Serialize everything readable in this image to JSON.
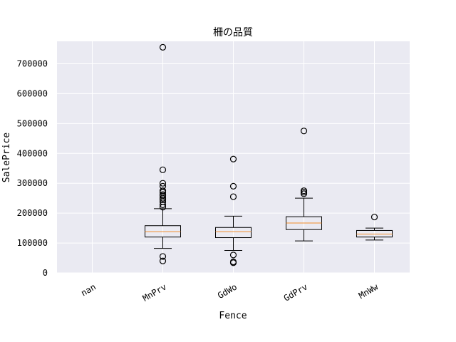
{
  "chart_data": {
    "type": "box",
    "title": "柵の品質",
    "xlabel": "Fence",
    "ylabel": "SalePrice",
    "ylim": [
      0,
      775000
    ],
    "yticks": [
      0,
      100000,
      200000,
      300000,
      400000,
      500000,
      600000,
      700000
    ],
    "ytick_labels": [
      "0",
      "100000",
      "200000",
      "300000",
      "400000",
      "500000",
      "600000",
      "700000"
    ],
    "grid": true,
    "background": "#eaeaf2",
    "box_color": "#000000",
    "median_color": "#f28e2b",
    "categories": [
      "nan",
      "MnPrv",
      "GdWo",
      "GdPrv",
      "MnWw"
    ],
    "boxes": [
      null,
      {
        "whisker_low": 82000,
        "q1": 120000,
        "median": 138000,
        "q3": 158000,
        "whisker_high": 215000,
        "outliers": [
          755000,
          345000,
          300000,
          290000,
          275000,
          270000,
          262000,
          258000,
          250000,
          245000,
          238000,
          228000,
          220000,
          55000,
          40000
        ]
      },
      {
        "whisker_low": 75000,
        "q1": 118000,
        "median": 138000,
        "q3": 152000,
        "whisker_high": 190000,
        "outliers": [
          381000,
          290000,
          255000,
          60000,
          37000,
          34000
        ]
      },
      {
        "whisker_low": 107000,
        "q1": 145000,
        "median": 167000,
        "q3": 188000,
        "whisker_high": 250000,
        "outliers": [
          475000,
          275000,
          270000,
          265000
        ]
      },
      {
        "whisker_low": 110000,
        "q1": 120000,
        "median": 130000,
        "q3": 142000,
        "whisker_high": 150000,
        "outliers": [
          187000
        ]
      }
    ]
  }
}
